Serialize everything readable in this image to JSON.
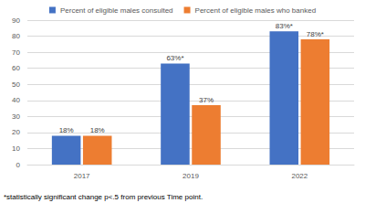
{
  "chart_data": {
    "type": "bar",
    "categories": [
      "2017",
      "2019",
      "2022"
    ],
    "series": [
      {
        "name": "Percent of eligible males consulted",
        "color": "#4472c4",
        "values": [
          18,
          63,
          83
        ],
        "value_labels": [
          "18%",
          "63%*",
          "83%*"
        ]
      },
      {
        "name": "Percent of eligible males who banked",
        "color": "#ed7d31",
        "values": [
          18,
          37,
          78
        ],
        "value_labels": [
          "18%",
          "37%",
          "78%*"
        ]
      }
    ],
    "ylim": [
      0,
      90
    ],
    "yticks": [
      0,
      10,
      20,
      30,
      40,
      50,
      60,
      70,
      80,
      90
    ],
    "grid": true,
    "legend": "top",
    "data_labels": true,
    "annotations": [
      "*statistically significant change p<.5 from previous Time point."
    ]
  }
}
